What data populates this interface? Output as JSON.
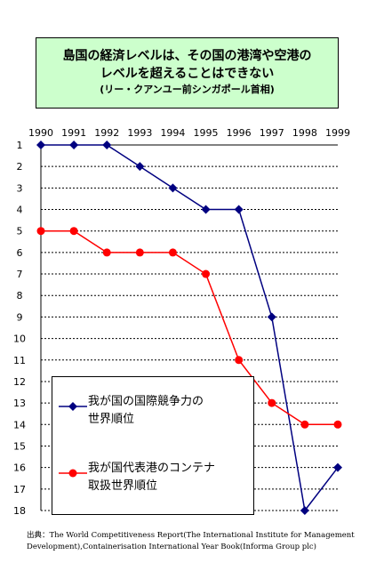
{
  "title": {
    "line1": "島国の経済レベルは、その国の港湾や空港の",
    "line2": "レベルを超えることはできない",
    "line3": "(リー・クアンユー前シンガポール首相)"
  },
  "source": "出典：The World Competitiveness Report(The International Institute for Management Development),Containerisation International Year Book(Informa Group plc)",
  "colors": {
    "series1": "#000080",
    "series2": "#ff0000",
    "title_bg": "#ccffcc"
  },
  "chart_data": {
    "type": "line",
    "x": [
      "1990",
      "1991",
      "1992",
      "1993",
      "1994",
      "1995",
      "1996",
      "1997",
      "1998",
      "1999"
    ],
    "y_ticks": [
      "1",
      "2",
      "3",
      "4",
      "5",
      "6",
      "7",
      "8",
      "9",
      "10",
      "11",
      "12",
      "13",
      "14",
      "15",
      "16",
      "17",
      "18"
    ],
    "ylim": [
      1,
      18
    ],
    "y_inverted": true,
    "grid": "horizontal-dotted",
    "legend_position": "bottom-left",
    "series": [
      {
        "name": "我が国の国際競争力の世界順位",
        "legend_line1": "我が国の国際競争力の",
        "legend_line2": "世界順位",
        "marker": "diamond",
        "values": [
          1,
          1,
          1,
          2,
          3,
          4,
          4,
          9,
          18,
          16
        ]
      },
      {
        "name": "我が国代表港のコンテナ取扱世界順位",
        "legend_line1": "我が国代表港のコンテナ",
        "legend_line2": "取扱世界順位",
        "marker": "circle",
        "values": [
          5,
          5,
          6,
          6,
          6,
          7,
          11,
          13,
          14,
          14
        ]
      }
    ]
  }
}
